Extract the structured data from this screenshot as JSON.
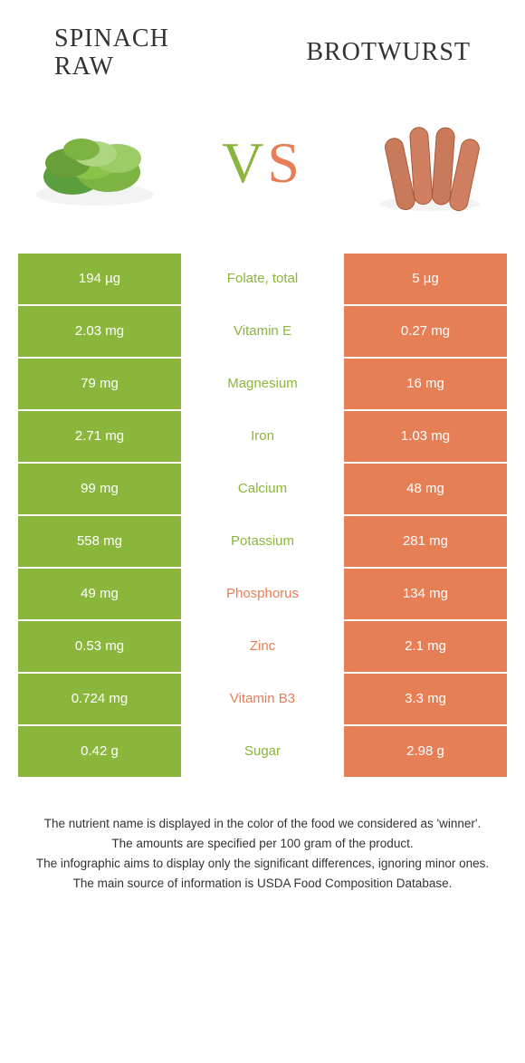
{
  "colors": {
    "green": "#8bb63c",
    "orange": "#e67e56",
    "title_text": "#333333",
    "footer_text": "#333333",
    "white": "#ffffff"
  },
  "food_left": {
    "title_line1": "Spinach",
    "title_line2": "raw"
  },
  "food_right": {
    "title": "Brotwurst"
  },
  "vs": {
    "v": "V",
    "s": "S"
  },
  "rows": [
    {
      "left": "194 µg",
      "mid": "Folate, total",
      "right": "5 µg",
      "winner": "left"
    },
    {
      "left": "2.03 mg",
      "mid": "Vitamin E",
      "right": "0.27 mg",
      "winner": "left"
    },
    {
      "left": "79 mg",
      "mid": "Magnesium",
      "right": "16 mg",
      "winner": "left"
    },
    {
      "left": "2.71 mg",
      "mid": "Iron",
      "right": "1.03 mg",
      "winner": "left"
    },
    {
      "left": "99 mg",
      "mid": "Calcium",
      "right": "48 mg",
      "winner": "left"
    },
    {
      "left": "558 mg",
      "mid": "Potassium",
      "right": "281 mg",
      "winner": "left"
    },
    {
      "left": "49 mg",
      "mid": "Phosphorus",
      "right": "134 mg",
      "winner": "right"
    },
    {
      "left": "0.53 mg",
      "mid": "Zinc",
      "right": "2.1 mg",
      "winner": "right"
    },
    {
      "left": "0.724 mg",
      "mid": "Vitamin B3",
      "right": "3.3 mg",
      "winner": "right"
    },
    {
      "left": "0.42 g",
      "mid": "Sugar",
      "right": "2.98 g",
      "winner": "left"
    }
  ],
  "footer": {
    "l1": "The nutrient name is displayed in the color of the food we considered as 'winner'.",
    "l2": "The amounts are specified per 100 gram of the product.",
    "l3": "The infographic aims to display only the significant differences, ignoring minor ones.",
    "l4": "The main source of information is USDA Food Composition Database."
  }
}
